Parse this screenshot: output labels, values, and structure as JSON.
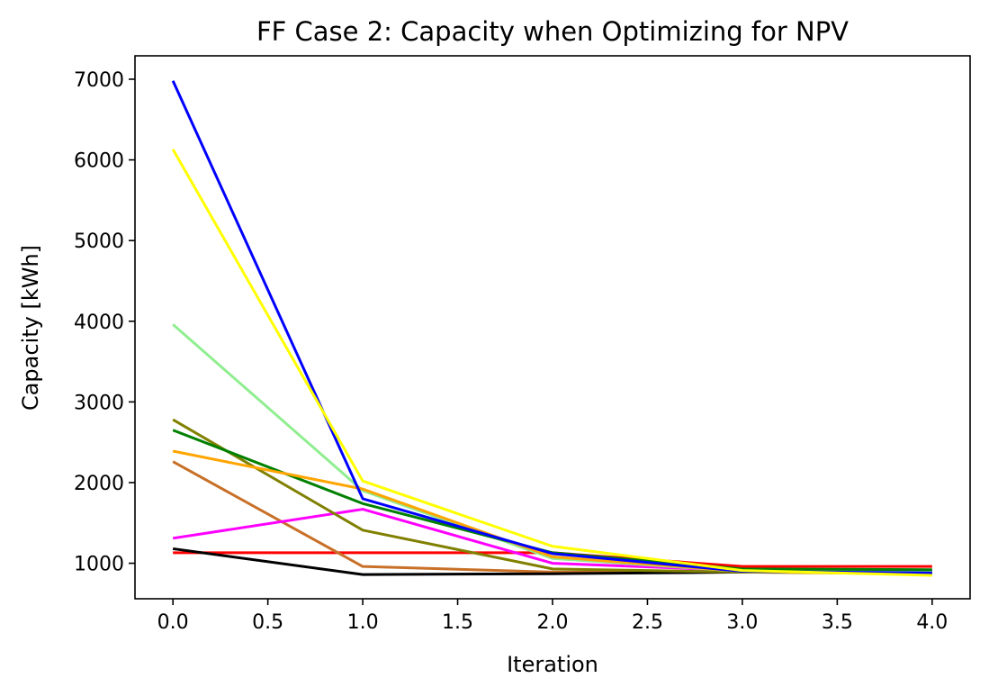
{
  "chart_data": {
    "type": "line",
    "title": "FF Case 2: Capacity when Optimizing for NPV",
    "xlabel": "Iteration",
    "ylabel": "Capacity [kWh]",
    "xlim": [
      -0.2,
      4.2
    ],
    "ylim": [
      560,
      7290
    ],
    "x": [
      0,
      1,
      2,
      3,
      4
    ],
    "xticks": [
      0.0,
      0.5,
      1.0,
      1.5,
      2.0,
      2.5,
      3.0,
      3.5,
      4.0
    ],
    "xtick_labels": [
      "0.0",
      "0.5",
      "1.0",
      "1.5",
      "2.0",
      "2.5",
      "3.0",
      "3.5",
      "4.0"
    ],
    "yticks": [
      1000,
      2000,
      3000,
      4000,
      5000,
      6000,
      7000
    ],
    "ytick_labels": [
      "1000",
      "2000",
      "3000",
      "4000",
      "5000",
      "6000",
      "7000"
    ],
    "grid": false,
    "series": [
      {
        "color": "#FF0000",
        "values": [
          1130,
          1130,
          1130,
          960,
          960
        ]
      },
      {
        "color": "#C87028",
        "values": [
          2260,
          960,
          890,
          890,
          890
        ]
      },
      {
        "color": "#000000",
        "values": [
          1180,
          860,
          870,
          890,
          900
        ]
      },
      {
        "color": "#FF00FF",
        "values": [
          1310,
          1670,
          1000,
          910,
          900
        ]
      },
      {
        "color": "#808000",
        "values": [
          2780,
          1410,
          930,
          890,
          870
        ]
      },
      {
        "color": "#90EE90",
        "values": [
          3960,
          1900,
          1060,
          900,
          890
        ]
      },
      {
        "color": "#008000",
        "values": [
          2650,
          1740,
          1130,
          930,
          920
        ]
      },
      {
        "color": "#FFA500",
        "values": [
          2390,
          1920,
          1080,
          900,
          860
        ]
      },
      {
        "color": "#0000FF",
        "values": [
          6980,
          1800,
          1120,
          900,
          880
        ]
      },
      {
        "color": "#FFFF00",
        "values": [
          6130,
          2020,
          1210,
          910,
          850
        ]
      }
    ]
  }
}
